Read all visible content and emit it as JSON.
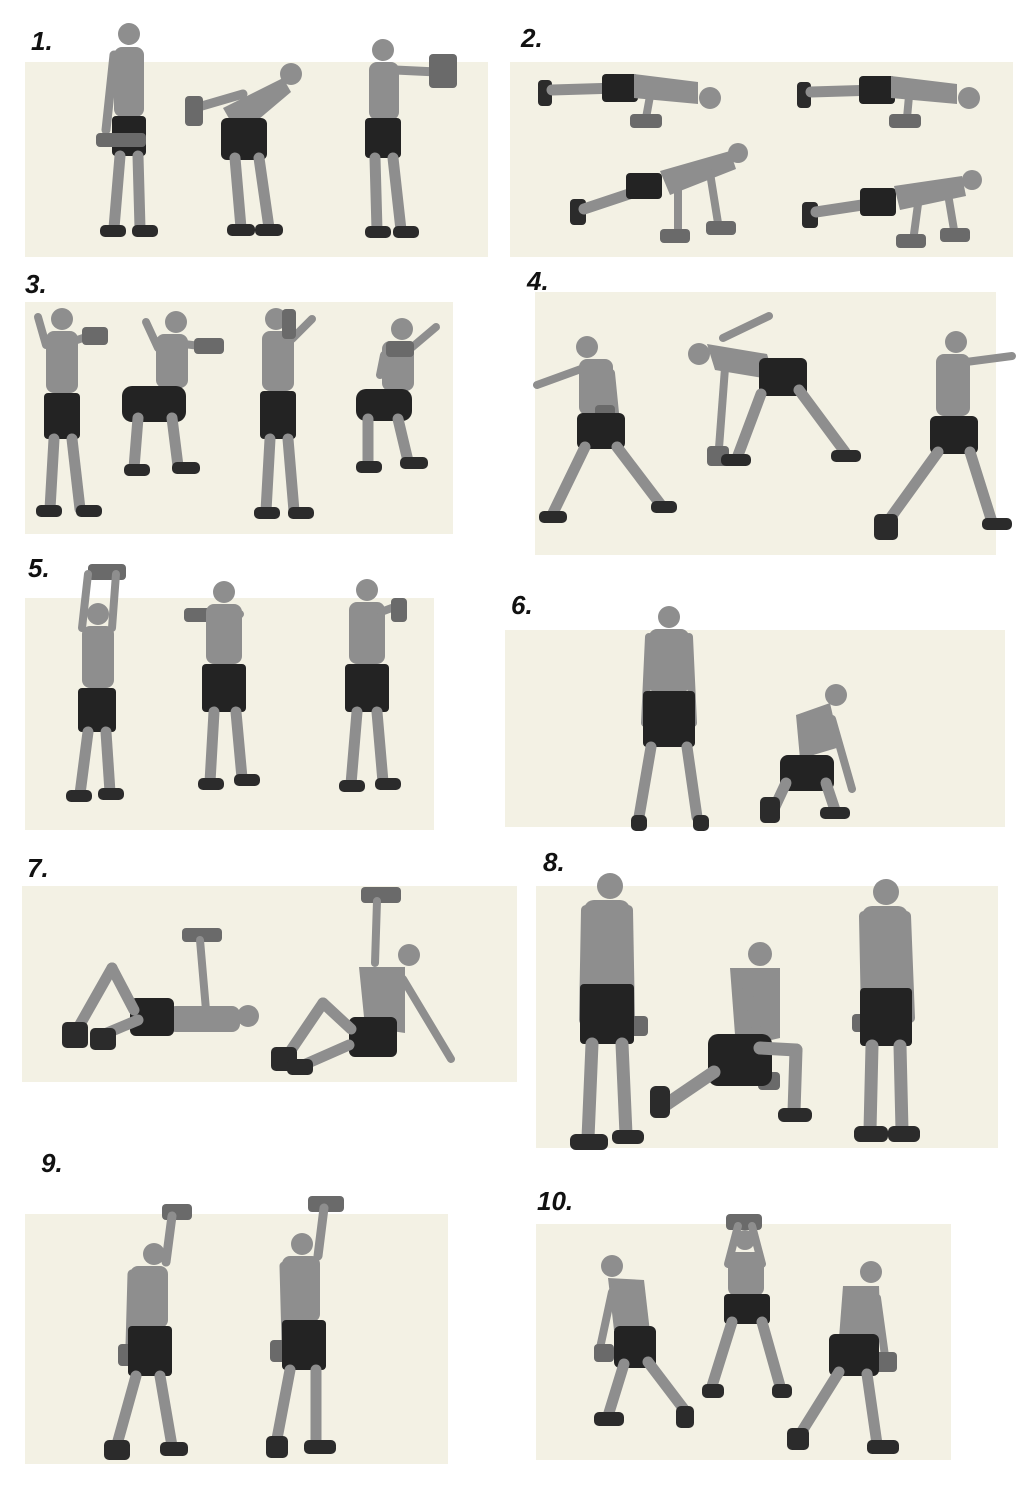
{
  "exercises": [
    {
      "number": "1.",
      "figures": 3
    },
    {
      "number": "2.",
      "figures": 4
    },
    {
      "number": "3.",
      "figures": 4
    },
    {
      "number": "4.",
      "figures": 3
    },
    {
      "number": "5.",
      "figures": 3
    },
    {
      "number": "6.",
      "figures": 2
    },
    {
      "number": "7.",
      "figures": 2
    },
    {
      "number": "8.",
      "figures": 3
    },
    {
      "number": "9.",
      "figures": 2
    },
    {
      "number": "10.",
      "figures": 3
    }
  ],
  "colors": {
    "panel": "#f3f1e4",
    "skin": "#8e8e8e",
    "shorts": "#232323",
    "shoes": "#2b2b2b",
    "dumbbell": "#6a6a6a"
  }
}
